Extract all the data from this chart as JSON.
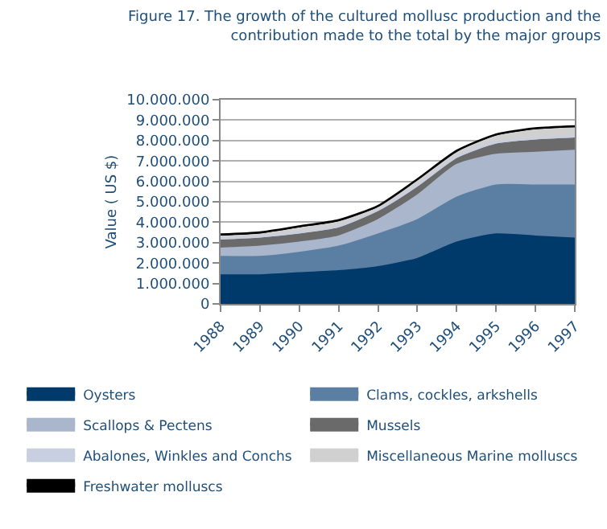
{
  "chart_data": {
    "type": "area",
    "stacked": true,
    "title": "Figure 17. The growth of the cultured mollusc production and the contribution made to the total by the major groups",
    "ylabel": "Value ( US $)",
    "categories": [
      "1988",
      "1989",
      "1990",
      "1991",
      "1992",
      "1993",
      "1994",
      "1995",
      "1996",
      "1997"
    ],
    "series": [
      {
        "name": "Oysters",
        "color": "#003a6b",
        "values": [
          1400000,
          1400000,
          1500000,
          1600000,
          1800000,
          2200000,
          3000000,
          3400000,
          3300000,
          3200000
        ]
      },
      {
        "name": "Clams, cockles, arkshells",
        "color": "#5b7fa3",
        "values": [
          900000,
          900000,
          1000000,
          1200000,
          1600000,
          1900000,
          2200000,
          2400000,
          2500000,
          2600000
        ]
      },
      {
        "name": "Scallops & Pectens",
        "color": "#a9b6cc",
        "values": [
          400000,
          500000,
          500000,
          500000,
          700000,
          1200000,
          1600000,
          1500000,
          1600000,
          1700000
        ]
      },
      {
        "name": "Mussels",
        "color": "#6a6a6a",
        "values": [
          400000,
          400000,
          400000,
          400000,
          400000,
          400000,
          300000,
          500000,
          600000,
          600000
        ]
      },
      {
        "name": "Abalones, Winkles and Conchs",
        "color": "#c8cfe0",
        "values": [
          100000,
          100000,
          100000,
          100000,
          100000,
          100000,
          100000,
          100000,
          100000,
          100000
        ]
      },
      {
        "name": "Miscellaneous Marine molluscs",
        "color": "#d0d0d0",
        "values": [
          100000,
          100000,
          200000,
          200000,
          100000,
          200000,
          200000,
          300000,
          400000,
          400000
        ]
      },
      {
        "name": "Freshwater molluscs",
        "color": "#000000",
        "values": [
          100000,
          100000,
          100000,
          100000,
          100000,
          100000,
          100000,
          100000,
          100000,
          100000
        ]
      }
    ],
    "ylim": [
      0,
      10000000
    ],
    "yticks": [
      0,
      {
        "value": 1000000,
        "label": "1.000.000"
      },
      {
        "value": 2000000,
        "label": "2.000.000"
      },
      {
        "value": 3000000,
        "label": "3.000.000"
      },
      {
        "value": 4000000,
        "label": "4.000.000"
      },
      {
        "value": 5000000,
        "label": "5.000.000"
      },
      {
        "value": 6000000,
        "label": "6.000.000"
      },
      {
        "value": 7000000,
        "label": "7.000.000"
      },
      {
        "value": 8000000,
        "label": "8.000.000"
      },
      {
        "value": 9000000,
        "label": "9.000.000"
      },
      {
        "value": 10000000,
        "label": "10.000.000"
      }
    ],
    "grid": "y",
    "legend": "bottom"
  }
}
